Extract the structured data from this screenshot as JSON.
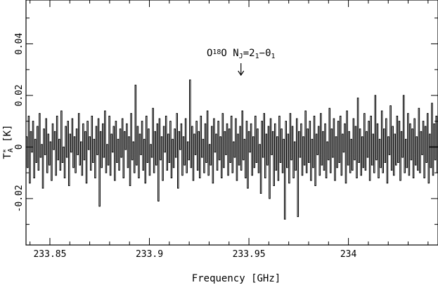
{
  "chart_data": {
    "type": "line",
    "title": "",
    "xlabel": "Frequency  [GHz]",
    "ylabel": {
      "base": "T",
      "sup": "*",
      "sub": "A",
      "unit": " [K]"
    },
    "xlim": [
      233.838,
      234.045
    ],
    "ylim": [
      -0.038,
      0.057
    ],
    "x_ticks": [
      233.85,
      233.9,
      233.95,
      234.0
    ],
    "x_tick_labels": [
      "233.85",
      "233.9",
      "233.95",
      "234"
    ],
    "y_ticks": [
      -0.02,
      0,
      0.02,
      0.04
    ],
    "y_tick_labels": [
      "-0.02",
      "0",
      "0.02",
      "0.04"
    ],
    "grid": false,
    "annotation": {
      "x": 233.946,
      "text_parts": [
        {
          "t": "O",
          "s": "normal"
        },
        {
          "t": "18",
          "s": "sup"
        },
        {
          "t": "O N",
          "s": "normal"
        },
        {
          "t": "J",
          "s": "sub"
        },
        {
          "t": "=2",
          "s": "normal"
        },
        {
          "t": "1",
          "s": "sub"
        },
        {
          "t": "−0",
          "s": "normal"
        },
        {
          "t": "1",
          "s": "sub"
        }
      ],
      "arrow": true
    },
    "series": [
      {
        "style": "step",
        "color": "#000000",
        "x_start": 233.838,
        "x_end": 234.045,
        "values": [
          0.004,
          -0.008,
          0.012,
          -0.014,
          0.006,
          -0.002,
          0.01,
          -0.012,
          0.003,
          -0.006,
          0.008,
          -0.009,
          0.013,
          -0.004,
          0.001,
          -0.016,
          0.007,
          -0.003,
          0.011,
          -0.01,
          0.005,
          -0.007,
          0.002,
          -0.013,
          0.009,
          -0.001,
          0.006,
          -0.011,
          0.012,
          -0.005,
          0.003,
          -0.009,
          0.014,
          -0.006,
          0.0,
          -0.012,
          0.008,
          -0.004,
          0.01,
          -0.015,
          0.005,
          -0.002,
          0.011,
          -0.008,
          0.004,
          -0.01,
          0.007,
          -0.003,
          0.013,
          -0.007,
          0.002,
          -0.011,
          0.009,
          -0.005,
          0.006,
          -0.014,
          0.01,
          -0.001,
          0.004,
          -0.009,
          0.012,
          -0.006,
          0.003,
          -0.012,
          0.008,
          -0.003,
          0.011,
          -0.023,
          0.006,
          -0.008,
          0.009,
          -0.004,
          0.014,
          -0.01,
          0.001,
          -0.007,
          0.012,
          -0.011,
          0.005,
          -0.002,
          0.008,
          -0.013,
          0.01,
          -0.006,
          0.003,
          -0.009,
          0.007,
          -0.004,
          0.011,
          -0.012,
          0.006,
          -0.001,
          0.009,
          -0.008,
          0.004,
          -0.015,
          0.013,
          -0.005,
          0.002,
          -0.01,
          0.024,
          -0.007,
          0.008,
          -0.012,
          0.005,
          -0.003,
          0.01,
          -0.009,
          0.003,
          -0.014,
          0.012,
          -0.006,
          0.007,
          -0.011,
          0.001,
          -0.004,
          0.015,
          -0.01,
          0.006,
          -0.007,
          0.009,
          -0.021,
          0.011,
          -0.005,
          0.004,
          -0.013,
          0.008,
          -0.002,
          0.012,
          -0.009,
          0.005,
          -0.006,
          0.01,
          -0.012,
          0.003,
          -0.008,
          0.007,
          -0.004,
          0.013,
          -0.016,
          0.006,
          -0.001,
          0.009,
          -0.011,
          0.004,
          -0.007,
          0.011,
          -0.01,
          0.002,
          -0.005,
          0.026,
          -0.008,
          0.008,
          -0.013,
          0.005,
          -0.003,
          0.01,
          -0.009,
          0.006,
          -0.012,
          0.012,
          -0.004,
          0.003,
          -0.01,
          0.009,
          -0.006,
          0.014,
          -0.011,
          0.001,
          -0.007,
          0.008,
          -0.014,
          0.011,
          -0.002,
          0.005,
          -0.009,
          0.01,
          -0.005,
          0.004,
          -0.012,
          0.013,
          -0.008,
          0.006,
          -0.003,
          0.009,
          -0.011,
          0.007,
          -0.006,
          0.012,
          -0.01,
          0.002,
          -0.004,
          0.011,
          -0.013,
          0.005,
          -0.007,
          0.008,
          -0.009,
          0.014,
          -0.005,
          0.003,
          -0.012,
          0.01,
          -0.016,
          0.006,
          -0.002,
          0.009,
          -0.011,
          0.004,
          -0.008,
          0.012,
          -0.006,
          0.007,
          -0.01,
          0.001,
          -0.018,
          0.01,
          -0.004,
          0.013,
          -0.012,
          0.005,
          -0.007,
          0.008,
          -0.02,
          0.011,
          -0.003,
          0.006,
          -0.015,
          0.009,
          -0.009,
          0.004,
          -0.013,
          0.012,
          -0.006,
          0.007,
          -0.01,
          0.003,
          -0.028,
          0.01,
          -0.008,
          0.005,
          -0.014,
          0.013,
          -0.005,
          0.008,
          -0.012,
          0.002,
          -0.009,
          0.011,
          -0.027,
          0.006,
          -0.004,
          0.009,
          -0.011,
          0.004,
          -0.007,
          0.014,
          -0.01,
          0.007,
          -0.006,
          0.01,
          -0.013,
          0.003,
          -0.008,
          0.012,
          -0.015,
          0.005,
          -0.003,
          0.008,
          -0.011,
          0.013,
          -0.007,
          0.006,
          -0.009,
          0.009,
          -0.012,
          0.002,
          -0.005,
          0.015,
          -0.01,
          0.007,
          -0.004,
          0.011,
          -0.013,
          0.004,
          -0.008,
          0.01,
          -0.006,
          0.012,
          -0.011,
          0.005,
          -0.002,
          0.009,
          -0.014,
          0.014,
          -0.007,
          0.006,
          -0.01,
          0.003,
          -0.009,
          0.011,
          -0.005,
          0.008,
          -0.012,
          0.019,
          -0.006,
          0.007,
          -0.011,
          0.004,
          -0.008,
          0.013,
          -0.009,
          0.006,
          -0.004,
          0.01,
          -0.013,
          0.012,
          -0.007,
          0.005,
          -0.01,
          0.02,
          -0.005,
          0.009,
          -0.012,
          0.003,
          -0.008,
          0.014,
          -0.01,
          0.007,
          -0.006,
          0.011,
          -0.014,
          0.004,
          -0.003,
          0.016,
          -0.009,
          0.008,
          -0.011,
          0.005,
          -0.007,
          0.012,
          -0.006,
          0.01,
          -0.013,
          0.006,
          -0.004,
          0.02,
          -0.01,
          0.003,
          -0.008,
          0.013,
          -0.011,
          0.009,
          -0.005,
          0.007,
          -0.012,
          0.011,
          -0.007,
          0.004,
          -0.009,
          0.015,
          -0.01,
          0.006,
          -0.003,
          0.01,
          -0.012,
          0.008,
          -0.006,
          0.013,
          -0.014,
          0.005,
          -0.008,
          0.017,
          -0.011,
          0.009,
          -0.005,
          0.012,
          -0.01
        ]
      }
    ]
  }
}
